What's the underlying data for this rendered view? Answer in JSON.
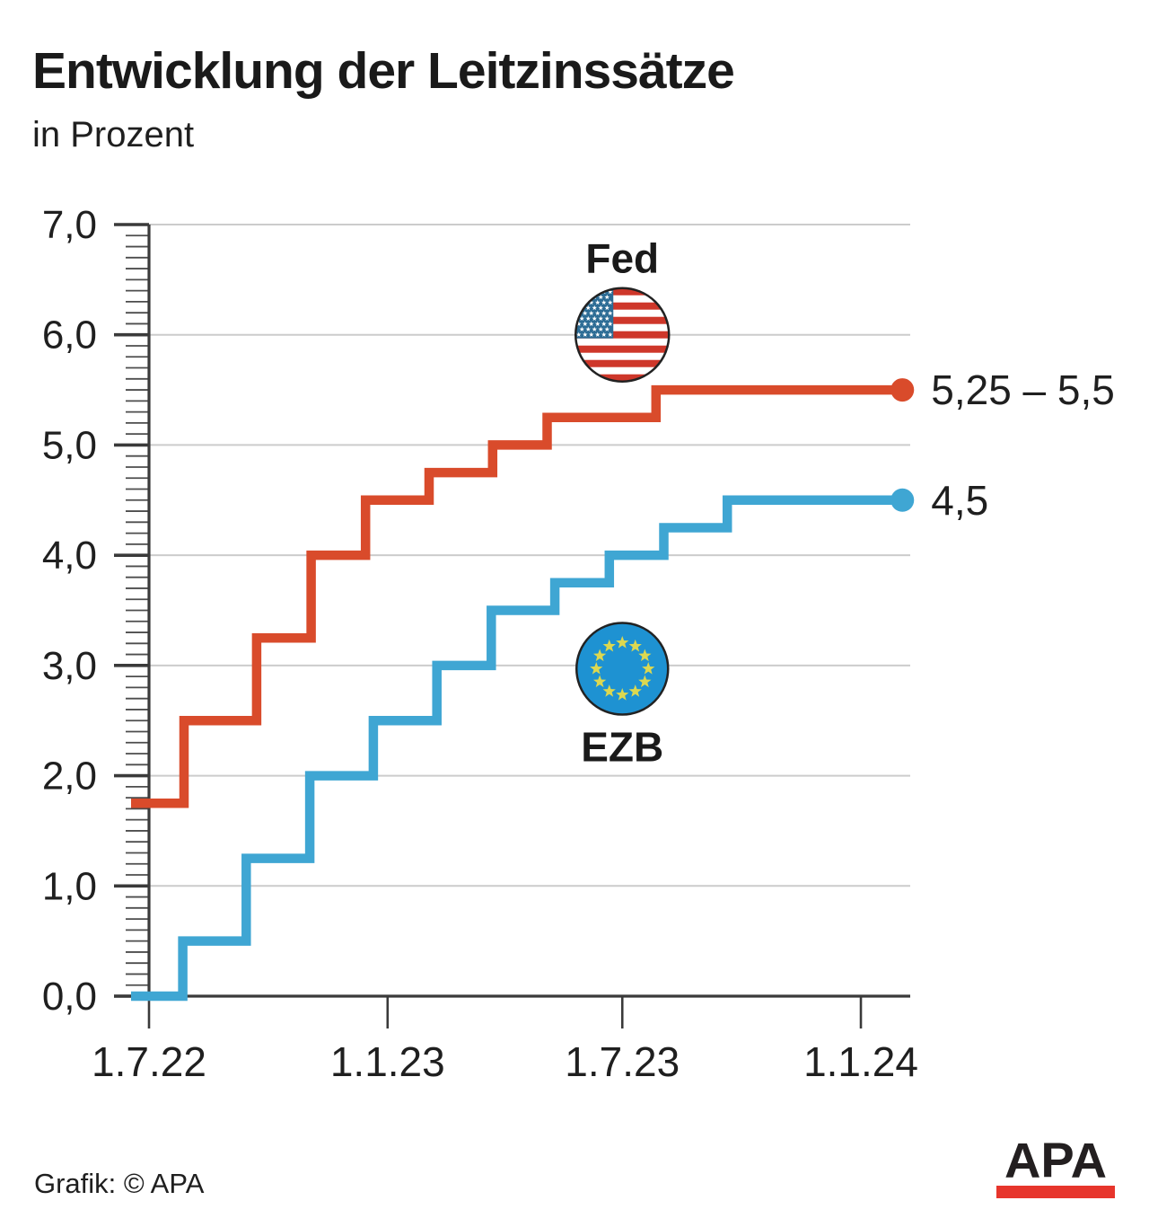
{
  "header": {
    "title": "Entwicklung der Leitzinssätze",
    "subtitle": "in Prozent"
  },
  "footer": {
    "credit": "Grafik: © APA",
    "logo_text": "APA",
    "logo_bar_color": "#e7352c"
  },
  "chart_data": {
    "type": "line",
    "line_style": "step-after",
    "title": "Entwicklung der Leitzinssätze",
    "subtitle": "in Prozent",
    "ylim": [
      0.0,
      7.0
    ],
    "y_major_step": 1.0,
    "y_minor_step": 0.1,
    "y_tick_labels": [
      "0,0",
      "1,0",
      "2,0",
      "3,0",
      "4,0",
      "5,0",
      "6,0",
      "7,0"
    ],
    "grid": true,
    "grid_color": "#cccccc",
    "axis_color": "#3a3a3a",
    "x_axis": {
      "start_date": "1.7.22",
      "tick_labels": [
        "1.7.22",
        "1.1.23",
        "1.7.23",
        "1.1.24"
      ],
      "tick_days_from_start": [
        0,
        184,
        365,
        549
      ],
      "end_day": 581
    },
    "series": [
      {
        "name": "Fed",
        "flag": "us",
        "color": "#d94b2b",
        "end_label": "5,25 – 5,5",
        "end_value": 5.5,
        "steps": [
          {
            "day": 0,
            "value": 1.75
          },
          {
            "day": 27,
            "value": 2.5
          },
          {
            "day": 83,
            "value": 3.25
          },
          {
            "day": 125,
            "value": 4.0
          },
          {
            "day": 167,
            "value": 4.5
          },
          {
            "day": 216,
            "value": 4.75
          },
          {
            "day": 265,
            "value": 5.0
          },
          {
            "day": 307,
            "value": 5.25
          },
          {
            "day": 391,
            "value": 5.5
          }
        ]
      },
      {
        "name": "EZB",
        "flag": "eu",
        "color": "#3fa6d3",
        "end_label": "4,5",
        "end_value": 4.5,
        "steps": [
          {
            "day": 0,
            "value": 0.0
          },
          {
            "day": 26,
            "value": 0.5
          },
          {
            "day": 75,
            "value": 1.25
          },
          {
            "day": 124,
            "value": 2.0
          },
          {
            "day": 173,
            "value": 2.5
          },
          {
            "day": 222,
            "value": 3.0
          },
          {
            "day": 264,
            "value": 3.5
          },
          {
            "day": 313,
            "value": 3.75
          },
          {
            "day": 355,
            "value": 4.0
          },
          {
            "day": 397,
            "value": 4.25
          },
          {
            "day": 446,
            "value": 4.5
          }
        ]
      }
    ],
    "annotations": [
      {
        "label": "Fed",
        "flag": "us",
        "center_day": 365,
        "flag_center_value": 6.0,
        "label_side": "above"
      },
      {
        "label": "EZB",
        "flag": "eu",
        "center_day": 365,
        "flag_center_value": 2.97,
        "label_side": "below"
      }
    ],
    "icons": {
      "us_flag": {
        "stripe": "#ce372a",
        "canton": "#2c6c95",
        "star": "#ffffff"
      },
      "eu_flag": {
        "bg": "#1e92d2",
        "star": "#dcd850"
      },
      "flag_border": "#222222"
    },
    "text_color": "#1f1f1f"
  }
}
